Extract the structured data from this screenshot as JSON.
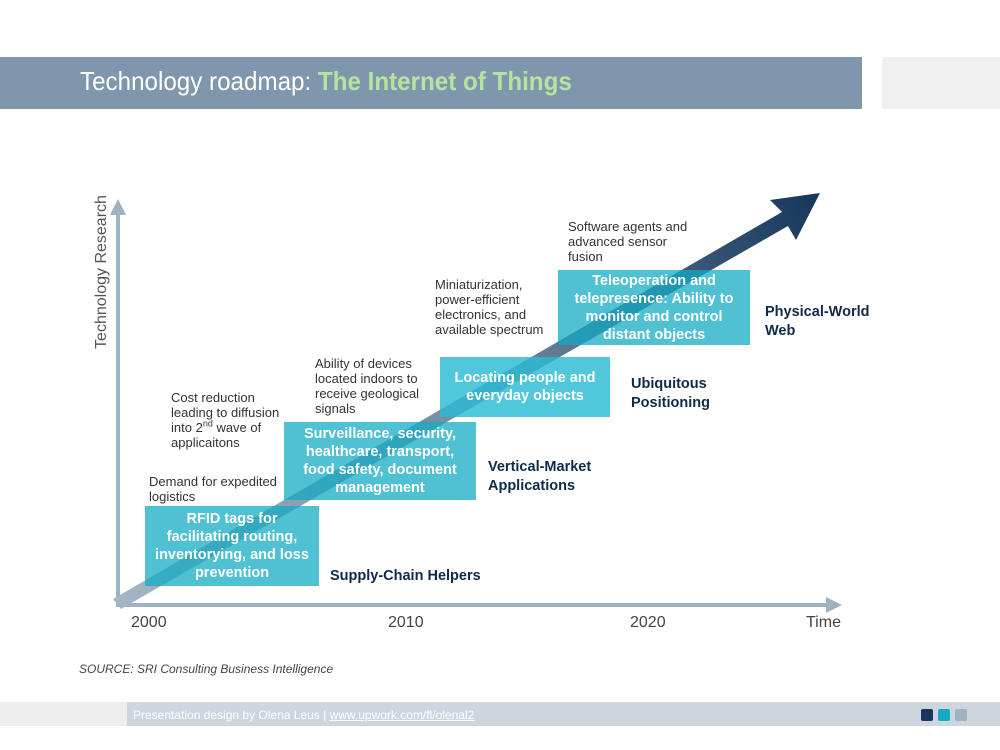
{
  "title": {
    "prefix": "Technology roadmap: ",
    "highlight": "The Internet of Things"
  },
  "axes": {
    "y_label": "Technology Research",
    "x_label": "Time",
    "ticks": [
      "2000",
      "2010",
      "2020"
    ]
  },
  "stages": [
    {
      "box_text": "RFID tags for facilitating routing, inventorying, and loss prevention",
      "stage_label": "Supply-Chain Helpers",
      "driver": "Demand for expedited logistics"
    },
    {
      "box_text": "Surveillance, security, healthcare, transport, food safety, document management",
      "stage_label": "Vertical-Market Applications",
      "driver": {
        "line1": "Cost reduction",
        "line2": "leading to diffusion",
        "line3_pre": "into 2",
        "line3_sup": "nd",
        "line3_post": " wave of",
        "line4": "applicaitons"
      }
    },
    {
      "box_text": "Locating people and everyday objects",
      "stage_label": "Ubiquitous Positioning",
      "driver": "Ability of devices located indoors to receive geological signals"
    },
    {
      "box_text": "Teleoperation and telepresence: Ability to monitor and control distant objects",
      "stage_label": "Physical-World Web",
      "driver": "Miniaturization, power-efficient electronics, and available spectrum"
    }
  ],
  "top_note": "Software agents and advanced sensor fusion",
  "source": "SOURCE: SRI Consulting Business Intelligence",
  "footer": {
    "text": "Presentation design by Olena Leus | ",
    "link": "www.upwork.com/fl/olenal2"
  },
  "colors": {
    "title_bar": "#7f97ad",
    "accent_green": "#b6e3a0",
    "box_teal": "#13aac4",
    "arrow_dark": "#16365a",
    "arrow_light": "#9fb2c2",
    "stage_navy": "#0f2a4a",
    "footer_squares": [
      "#16365a",
      "#13aac4",
      "#9fb2c2"
    ]
  }
}
